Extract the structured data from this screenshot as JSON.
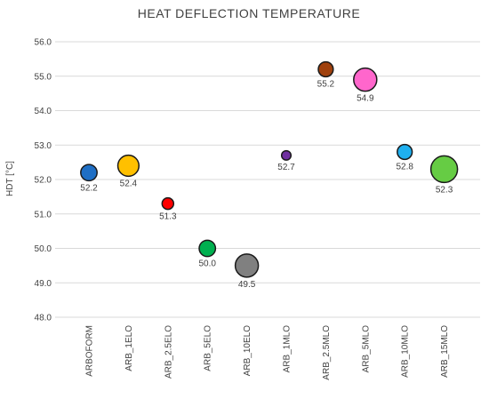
{
  "chart_data": {
    "type": "scatter",
    "title": "HEAT DEFLECTION TEMPERATURE",
    "ylabel": "HDT [°C]",
    "xlabel": "",
    "ylim": [
      48.0,
      56.0
    ],
    "yticks": [
      "48.0",
      "49.0",
      "50.0",
      "51.0",
      "52.0",
      "53.0",
      "54.0",
      "55.0",
      "56.0"
    ],
    "grid": true,
    "categories": [
      "ARBOFORM",
      "ARB_1ELO",
      "ARB_2.5ELO",
      "ARB_5ELO",
      "ARB_10ELO",
      "ARB_1MLO",
      "ARB_2.5MLO",
      "ARB_5MLO",
      "ARB_10MLO",
      "ARB_15MLO"
    ],
    "points": [
      {
        "category": "ARBOFORM",
        "value": 52.2,
        "label": "52.2",
        "color": "#1f6fc5",
        "bubble_size": 3
      },
      {
        "category": "ARB_1ELO",
        "value": 52.4,
        "label": "52.4",
        "color": "#ffc000",
        "bubble_size": 5
      },
      {
        "category": "ARB_2.5ELO",
        "value": 51.3,
        "label": "51.3",
        "color": "#ff0000",
        "bubble_size": 1.5
      },
      {
        "category": "ARB_5ELO",
        "value": 50.0,
        "label": "50.0",
        "color": "#00b050",
        "bubble_size": 3
      },
      {
        "category": "ARB_10ELO",
        "value": 49.5,
        "label": "49.5",
        "color": "#808080",
        "bubble_size": 6
      },
      {
        "category": "ARB_1MLO",
        "value": 52.7,
        "label": "52.7",
        "color": "#7030a0",
        "bubble_size": 1
      },
      {
        "category": "ARB_2.5MLO",
        "value": 55.2,
        "label": "55.2",
        "color": "#a0410d",
        "bubble_size": 2.5
      },
      {
        "category": "ARB_5MLO",
        "value": 54.9,
        "label": "54.9",
        "color": "#ff66cc",
        "bubble_size": 6
      },
      {
        "category": "ARB_10MLO",
        "value": 52.8,
        "label": "52.8",
        "color": "#1fb0f0",
        "bubble_size": 2.5
      },
      {
        "category": "ARB_15MLO",
        "value": 52.3,
        "label": "52.3",
        "color": "#66cc44",
        "bubble_size": 8
      }
    ]
  }
}
